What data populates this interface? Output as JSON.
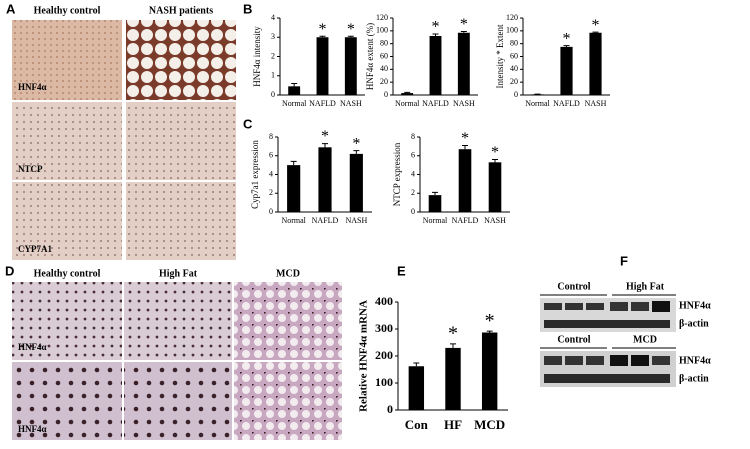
{
  "panel_a": {
    "label": "A",
    "columns": [
      "Healthy control",
      "NASH patients"
    ],
    "row_labels": [
      "HNF4α",
      "NTCP",
      "CYP7A1"
    ]
  },
  "panel_b": {
    "label": "B"
  },
  "panel_c": {
    "label": "C"
  },
  "panel_d": {
    "label": "D",
    "columns": [
      "Healthy control",
      "High Fat",
      "MCD"
    ],
    "row_labels": [
      "HNF4α",
      "HNF4α"
    ]
  },
  "panel_e": {
    "label": "E"
  },
  "panel_f": {
    "label": "F",
    "blots": [
      {
        "groups": [
          "Control",
          "High Fat"
        ],
        "bands": [
          "HNF4α",
          "β-actin"
        ]
      },
      {
        "groups": [
          "Control",
          "MCD"
        ],
        "bands": [
          "HNF4α",
          "β-actin"
        ]
      }
    ]
  },
  "chart_data": [
    {
      "type": "bar",
      "ylabel": "HNF4α intensity",
      "categories": [
        "Normal",
        "NAFLD",
        "NASH"
      ],
      "values": [
        0.45,
        3.0,
        3.0
      ],
      "errors": [
        0.15,
        0.05,
        0.05
      ],
      "significance": [
        null,
        "*",
        "*"
      ],
      "ylim": [
        0,
        4
      ],
      "yticks": [
        0,
        1,
        2,
        3,
        4
      ],
      "color": "#000000"
    },
    {
      "type": "bar",
      "ylabel": "HNF4α extent (%)",
      "categories": [
        "Normal",
        "NAFLD",
        "NASH"
      ],
      "values": [
        3,
        92,
        97
      ],
      "errors": [
        1,
        3,
        2
      ],
      "significance": [
        null,
        "*",
        "*"
      ],
      "ylim": [
        0,
        120
      ],
      "yticks": [
        0,
        20,
        40,
        60,
        80,
        100,
        120
      ],
      "color": "#000000"
    },
    {
      "type": "bar",
      "ylabel": "Intensity * Extent",
      "categories": [
        "Normal",
        "NAFLD",
        "NASH"
      ],
      "values": [
        1,
        75,
        97
      ],
      "errors": [
        0.3,
        2,
        1
      ],
      "significance": [
        null,
        "*",
        "*"
      ],
      "ylim": [
        0,
        120
      ],
      "yticks": [
        0,
        20,
        40,
        60,
        80,
        100,
        120
      ],
      "color": "#000000"
    },
    {
      "type": "bar",
      "ylabel": "Cyp7a1 expression",
      "categories": [
        "Normal",
        "NAFLD",
        "NASH"
      ],
      "values": [
        5.0,
        6.9,
        6.2
      ],
      "errors": [
        0.4,
        0.4,
        0.35
      ],
      "significance": [
        null,
        "*",
        "*"
      ],
      "ylim": [
        0,
        8
      ],
      "yticks": [
        0,
        2,
        4,
        6,
        8
      ],
      "color": "#000000"
    },
    {
      "type": "bar",
      "ylabel": "NTCP expression",
      "categories": [
        "Normal",
        "NAFLD",
        "NASH"
      ],
      "values": [
        1.8,
        6.7,
        5.3
      ],
      "errors": [
        0.3,
        0.4,
        0.3
      ],
      "significance": [
        null,
        "*",
        "*"
      ],
      "ylim": [
        0,
        8
      ],
      "yticks": [
        0,
        2,
        4,
        6,
        8
      ],
      "color": "#000000"
    },
    {
      "type": "bar",
      "ylabel": "Relative HNF4α mRNA",
      "categories": [
        "Con",
        "HF",
        "MCD"
      ],
      "values": [
        162,
        230,
        287
      ],
      "errors": [
        12,
        15,
        5
      ],
      "significance": [
        null,
        "*",
        "*"
      ],
      "ylim": [
        0,
        400
      ],
      "yticks": [
        0,
        100,
        200,
        300,
        400
      ],
      "color": "#000000"
    }
  ]
}
